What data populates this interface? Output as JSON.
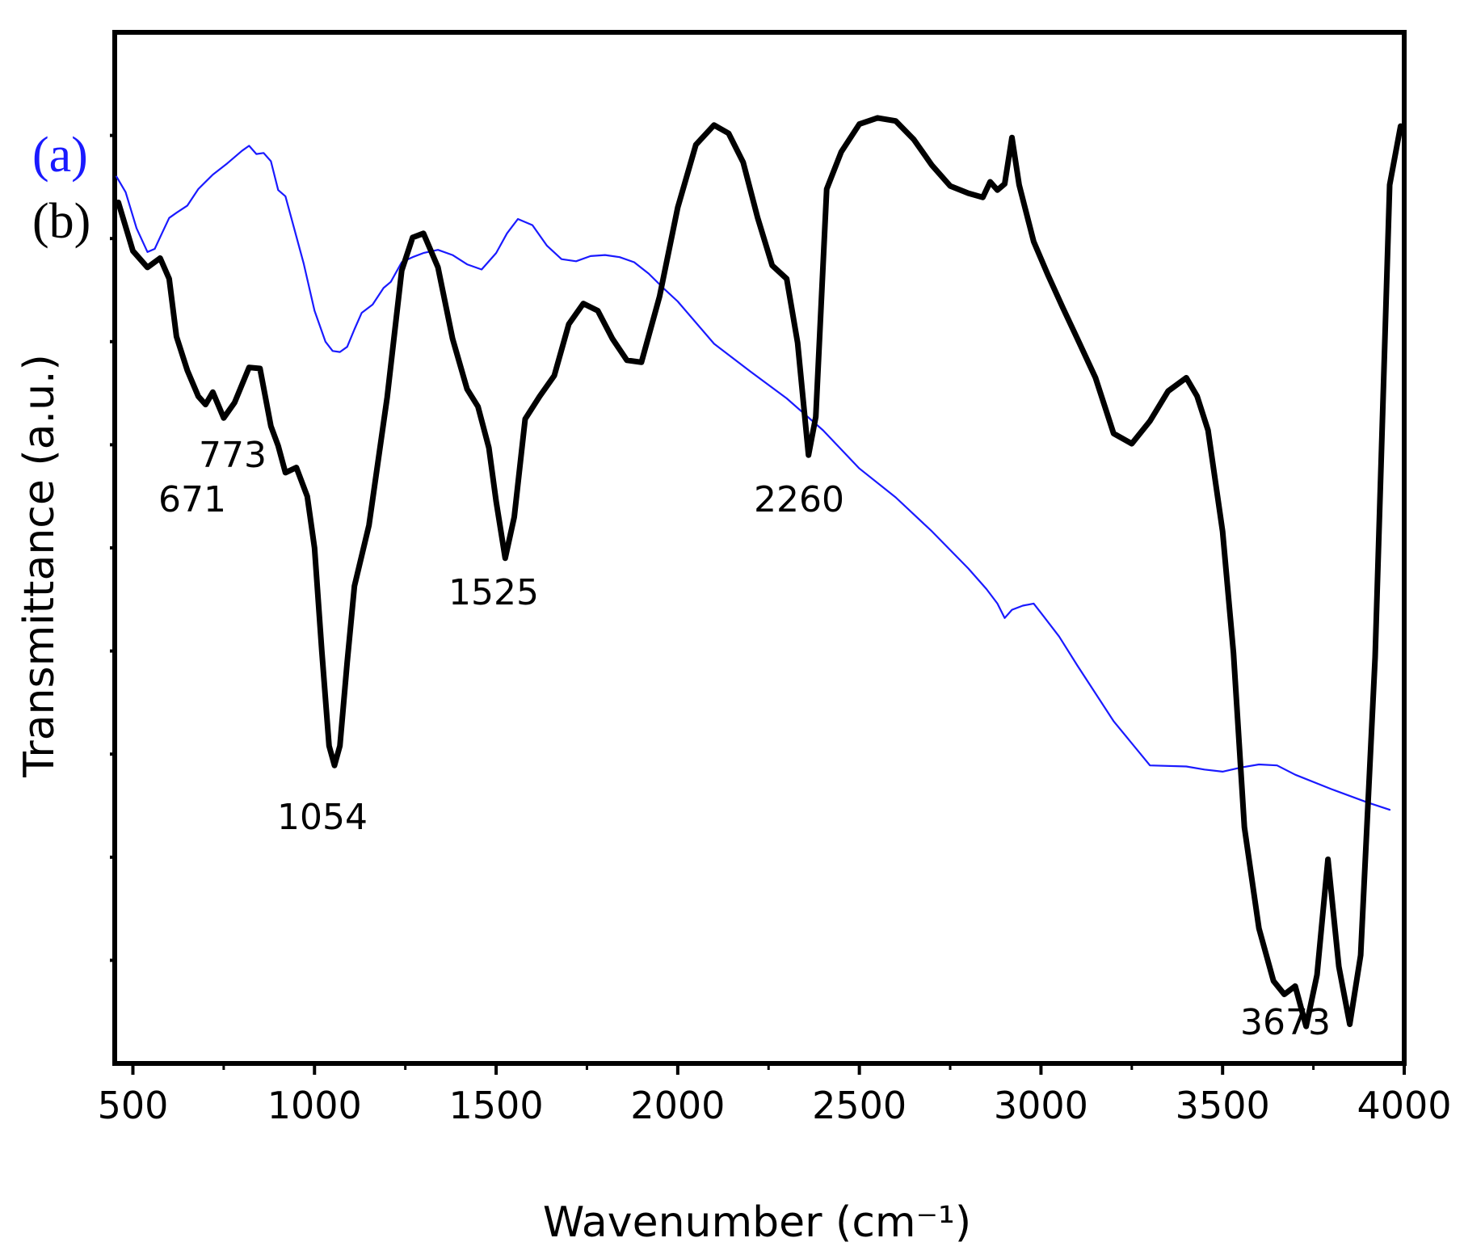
{
  "chart_data": {
    "type": "line",
    "xlabel": "Wavenumber (cm⁻¹)",
    "ylabel": "Transmittance (a.u.)",
    "xlim": [
      450,
      4000
    ],
    "ylim": [
      0,
      100
    ],
    "x_ticks": [
      500,
      1000,
      1500,
      2000,
      2500,
      3000,
      3500,
      4000
    ],
    "x_tick_labels": [
      "500",
      "1000",
      "1500",
      "2000",
      "2500",
      "3000",
      "3500",
      "4000"
    ],
    "y_tick_labels_shown": false,
    "grid": false,
    "legend_position": "top-left",
    "series": [
      {
        "name": "(a)",
        "color": "#1a1aff",
        "stroke": "thin",
        "x": [
          455,
          480,
          510,
          540,
          560,
          580,
          600,
          620,
          650,
          680,
          720,
          760,
          800,
          820,
          840,
          860,
          880,
          900,
          920,
          940,
          970,
          1000,
          1030,
          1050,
          1070,
          1090,
          1110,
          1130,
          1160,
          1190,
          1210,
          1240,
          1270,
          1300,
          1340,
          1380,
          1420,
          1460,
          1500,
          1530,
          1560,
          1600,
          1640,
          1680,
          1720,
          1760,
          1800,
          1840,
          1880,
          1920,
          1960,
          2000,
          2100,
          2200,
          2300,
          2400,
          2500,
          2600,
          2700,
          2800,
          2850,
          2880,
          2900,
          2920,
          2950,
          2980,
          3000,
          3050,
          3100,
          3200,
          3300,
          3400,
          3450,
          3500,
          3550,
          3600,
          3650,
          3700,
          3800,
          3900,
          3960
        ],
        "y": [
          86.0,
          84.5,
          81.0,
          78.7,
          79.0,
          80.5,
          82.0,
          82.5,
          83.2,
          84.8,
          86.2,
          87.3,
          88.5,
          89.0,
          88.2,
          88.3,
          87.5,
          84.7,
          84.1,
          81.5,
          77.6,
          73.0,
          70.0,
          69.1,
          69.0,
          69.5,
          71.2,
          72.8,
          73.6,
          75.2,
          75.8,
          77.7,
          78.2,
          78.6,
          78.9,
          78.4,
          77.5,
          77.0,
          78.6,
          80.5,
          81.9,
          81.3,
          79.3,
          78.0,
          77.8,
          78.3,
          78.4,
          78.2,
          77.7,
          76.6,
          75.2,
          73.9,
          69.8,
          67.1,
          64.5,
          61.4,
          57.7,
          54.9,
          51.6,
          48.0,
          46.0,
          44.6,
          43.2,
          44.0,
          44.4,
          44.6,
          43.7,
          41.4,
          38.6,
          33.2,
          28.9,
          28.8,
          28.5,
          28.3,
          28.7,
          29.0,
          28.9,
          28.0,
          26.6,
          25.3,
          24.6
        ]
      },
      {
        "name": "(b)",
        "color": "#000000",
        "stroke": "thick",
        "x": [
          460,
          500,
          540,
          575,
          600,
          620,
          650,
          680,
          700,
          720,
          750,
          780,
          820,
          850,
          880,
          900,
          920,
          950,
          980,
          1000,
          1020,
          1040,
          1055,
          1070,
          1090,
          1110,
          1150,
          1200,
          1240,
          1270,
          1300,
          1340,
          1380,
          1420,
          1450,
          1480,
          1500,
          1525,
          1550,
          1580,
          1620,
          1660,
          1700,
          1740,
          1780,
          1820,
          1860,
          1900,
          1950,
          2000,
          2050,
          2100,
          2140,
          2180,
          2220,
          2260,
          2300,
          2330,
          2360,
          2380,
          2410,
          2450,
          2500,
          2550,
          2600,
          2650,
          2700,
          2750,
          2800,
          2840,
          2860,
          2880,
          2900,
          2920,
          2940,
          2980,
          3020,
          3060,
          3100,
          3150,
          3200,
          3250,
          3300,
          3350,
          3400,
          3430,
          3460,
          3500,
          3530,
          3560,
          3600,
          3640,
          3670,
          3700,
          3730,
          3760,
          3790,
          3820,
          3850,
          3880,
          3920,
          3960,
          3990
        ],
        "y": [
          83.5,
          78.8,
          77.2,
          78.1,
          76.1,
          70.5,
          67.2,
          64.7,
          63.9,
          65.1,
          62.6,
          64.1,
          67.5,
          67.4,
          61.8,
          59.9,
          57.3,
          57.8,
          55.0,
          50.0,
          40.0,
          30.8,
          28.9,
          30.8,
          38.9,
          46.3,
          52.2,
          64.6,
          76.9,
          80.1,
          80.5,
          77.2,
          70.3,
          65.4,
          63.7,
          59.7,
          54.5,
          49.0,
          53.0,
          62.5,
          64.7,
          66.7,
          71.7,
          73.7,
          73.0,
          70.3,
          68.2,
          68.0,
          74.4,
          83.0,
          89.1,
          91.0,
          90.2,
          87.4,
          82.0,
          77.4,
          76.1,
          69.9,
          59.0,
          62.7,
          84.8,
          88.4,
          91.1,
          91.7,
          91.4,
          89.6,
          87.1,
          85.1,
          84.4,
          84.0,
          85.5,
          84.7,
          85.3,
          89.8,
          85.2,
          79.7,
          76.4,
          73.3,
          70.3,
          66.5,
          61.1,
          60.1,
          62.3,
          65.2,
          66.5,
          64.7,
          61.4,
          51.6,
          39.8,
          22.9,
          13.1,
          8.0,
          6.7,
          7.5,
          3.6,
          8.6,
          19.8,
          9.4,
          3.8,
          10.5,
          39.4,
          85.2,
          90.9
        ]
      }
    ],
    "annotations": [
      "671",
      "773",
      "1054",
      "1525",
      "2260",
      "3673"
    ]
  }
}
